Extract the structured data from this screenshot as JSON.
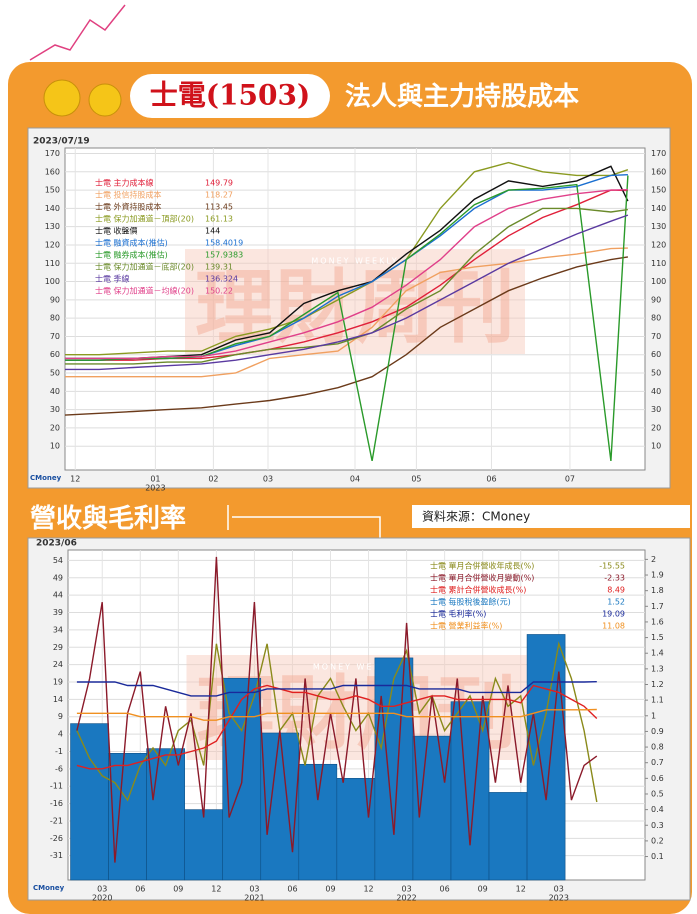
{
  "header": {
    "stock": "士電(1503)",
    "title": "法人與主力持股成本"
  },
  "section_title": "營收與毛利率",
  "source": "資料來源：CMoney",
  "watermark": {
    "name": "理財周刊",
    "en": "MONEY WEEKLY"
  },
  "logo": "CMoney",
  "chart_data": [
    {
      "type": "line",
      "date": "2023/07/19",
      "x": [
        0,
        2,
        4,
        6,
        8,
        10,
        12,
        14,
        16,
        18,
        20,
        22,
        24,
        26,
        28,
        30,
        32,
        33
      ],
      "xlim": [
        0,
        34
      ],
      "xticks": [
        {
          "value": 0.6,
          "label": "12"
        },
        {
          "value": 5.3,
          "label": "01"
        },
        {
          "value": 8.7,
          "label": "02"
        },
        {
          "value": 11.9,
          "label": "03"
        },
        {
          "value": 17,
          "label": "04"
        },
        {
          "value": 20.6,
          "label": "05"
        },
        {
          "value": 25,
          "label": "06"
        },
        {
          "value": 29.6,
          "label": "07"
        }
      ],
      "year_labels": [
        {
          "value": 5.3,
          "label": "2023"
        }
      ],
      "ylim": [
        -3,
        173
      ],
      "yticks": [
        10,
        20,
        30,
        40,
        50,
        60,
        70,
        80,
        90,
        100,
        110,
        120,
        130,
        140,
        150,
        160,
        170
      ],
      "grid": true,
      "series": [
        {
          "name": "士電 主力成本線",
          "color": "#e0203a",
          "legend_value": 149.79,
          "values": [
            57,
            57,
            57,
            58,
            58,
            60,
            63,
            67,
            72,
            78,
            86,
            98,
            112,
            125,
            135,
            142,
            150,
            149.79
          ]
        },
        {
          "name": "士電 投信持股成本",
          "color": "#f0a060",
          "legend_value": 118.27,
          "values": [
            48,
            48,
            48,
            48,
            48,
            50,
            58,
            60,
            62,
            75,
            95,
            105,
            108,
            110,
            113,
            115,
            118,
            118.27
          ]
        },
        {
          "name": "士電 外資持股成本",
          "color": "#6b3a1a",
          "legend_value": 113.45,
          "values": [
            27,
            28,
            29,
            30,
            31,
            33,
            35,
            38,
            42,
            48,
            60,
            75,
            85,
            95,
            102,
            108,
            112,
            113.45
          ]
        },
        {
          "name": "士電 保力加通道－頂部(20)",
          "color": "#8a9a20",
          "legend_value": 161.13,
          "values": [
            60,
            60,
            61,
            62,
            62,
            70,
            74,
            80,
            90,
            100,
            112,
            140,
            160,
            165,
            160,
            158,
            158,
            161.13
          ]
        },
        {
          "name": "士電 收盤價",
          "color": "#111111",
          "legend_value": 144,
          "values": [
            58,
            58,
            58,
            59,
            60,
            68,
            72,
            88,
            95,
            100,
            115,
            128,
            145,
            155,
            152,
            155,
            163,
            144
          ]
        },
        {
          "name": "士電 融資成本(推估)",
          "color": "#1a6fd0",
          "legend_value": 158.4019,
          "values": [
            57,
            57,
            58,
            58,
            59,
            65,
            70,
            80,
            92,
            100,
            112,
            125,
            140,
            150,
            150,
            152,
            158,
            158.4019
          ]
        },
        {
          "name": "士電 融券成本(推估)",
          "color": "#2a9a2a",
          "legend_value": 157.9383,
          "values": [
            57,
            57,
            58,
            58,
            59,
            66,
            70,
            82,
            94,
            2,
            112,
            126,
            142,
            150,
            151,
            153,
            2,
            157.9383
          ]
        },
        {
          "name": "士電 保力加通道－底部(20)",
          "color": "#6a8a2a",
          "legend_value": 139.31,
          "values": [
            55,
            55,
            55,
            56,
            56,
            60,
            63,
            64,
            66,
            72,
            85,
            95,
            115,
            130,
            140,
            140,
            138,
            139.31
          ]
        },
        {
          "name": "士電 季線",
          "color": "#5a3aa0",
          "legend_value": 136.324,
          "values": [
            52,
            52,
            53,
            54,
            55,
            57,
            60,
            63,
            67,
            72,
            80,
            90,
            100,
            110,
            118,
            126,
            133,
            136.324
          ]
        },
        {
          "name": "士電 保力加通道－均線(20)",
          "color": "#e0408a",
          "legend_value": 150.22,
          "values": [
            58,
            58,
            58,
            59,
            59,
            62,
            67,
            72,
            78,
            86,
            98,
            112,
            130,
            140,
            145,
            148,
            150,
            150.22
          ]
        }
      ]
    },
    {
      "type": "combo",
      "date": "2023/06",
      "x": [
        0,
        1,
        2,
        3,
        4,
        5,
        6,
        7,
        8,
        9,
        10,
        11,
        12,
        13,
        14,
        15,
        16,
        17,
        18,
        19,
        20,
        21,
        22,
        23,
        24,
        25,
        26,
        27,
        28,
        29,
        30,
        31,
        32,
        33,
        34,
        35,
        36,
        37,
        38,
        39,
        40,
        41
      ],
      "xlim": [
        -0.7,
        44.8
      ],
      "xticks": [
        {
          "value": 2,
          "label": "03"
        },
        {
          "value": 5,
          "label": "06"
        },
        {
          "value": 8,
          "label": "09"
        },
        {
          "value": 11,
          "label": "12"
        },
        {
          "value": 14,
          "label": "03"
        },
        {
          "value": 17,
          "label": "06"
        },
        {
          "value": 20,
          "label": "09"
        },
        {
          "value": 23,
          "label": "12"
        },
        {
          "value": 26,
          "label": "03"
        },
        {
          "value": 29,
          "label": "06"
        },
        {
          "value": 32,
          "label": "09"
        },
        {
          "value": 35,
          "label": "12"
        },
        {
          "value": 38,
          "label": "03"
        }
      ],
      "year_labels": [
        {
          "value": 2,
          "label": "2020"
        },
        {
          "value": 14,
          "label": "2021"
        },
        {
          "value": 26,
          "label": "2022"
        },
        {
          "value": 38,
          "label": "2023"
        }
      ],
      "ylim": [
        -38,
        57
      ],
      "yticks": [
        -31,
        -26,
        -21,
        -16,
        -11,
        -6,
        -1,
        4,
        9,
        14,
        19,
        24,
        29,
        34,
        39,
        44,
        49,
        54
      ],
      "y2lim": [
        -0.05,
        2.06
      ],
      "y2ticks": [
        0.1,
        0.2,
        0.3,
        0.4,
        0.5,
        0.6,
        0.7,
        0.8,
        0.9,
        1,
        1.1,
        1.2,
        1.3,
        1.4,
        1.5,
        1.6,
        1.7,
        1.8,
        1.9,
        2
      ],
      "grid": true,
      "series": [
        {
          "name": "士電 單月合併營收年成長(%)",
          "color": "#8a8a1a",
          "legend_value": -15.55,
          "values": [
            5,
            -3,
            -8,
            -10,
            -15,
            -5,
            0,
            -5,
            5,
            8,
            -5,
            30,
            10,
            5,
            15,
            30,
            5,
            10,
            -5,
            15,
            20,
            12,
            5,
            10,
            0,
            20,
            28,
            10,
            15,
            5,
            10,
            15,
            5,
            20,
            12,
            15,
            -5,
            10,
            30,
            20,
            5,
            -15.55
          ]
        },
        {
          "name": "士電 單月合併營收月變動(%)",
          "color": "#8b1a2a",
          "legend_value": -2.33,
          "values": [
            5,
            20,
            42,
            -33,
            10,
            22,
            -15,
            12,
            -5,
            10,
            -20,
            55,
            -20,
            -10,
            42,
            -25,
            5,
            -30,
            20,
            -15,
            10,
            -10,
            20,
            -20,
            15,
            -25,
            36,
            -20,
            15,
            -10,
            20,
            -28,
            15,
            -10,
            18,
            -10,
            10,
            -15,
            22,
            -15,
            -5,
            -2.33
          ]
        },
        {
          "name": "士電 累計合併營收成長(%)",
          "color": "#e02020",
          "legend_value": 8.49,
          "values": [
            -5,
            -6,
            -6,
            -5,
            -5,
            -4,
            -3,
            -2,
            -2,
            -1,
            0,
            2,
            8,
            14,
            17,
            18,
            17,
            16,
            16,
            15,
            14,
            14,
            15,
            14,
            12,
            12,
            13,
            14,
            15,
            15,
            14,
            14,
            14,
            14,
            14,
            13,
            18,
            17,
            16,
            14,
            12,
            8.49
          ]
        },
        {
          "name": "士電 每股稅後盈餘(元)",
          "color": "#1a78c0",
          "legend_value": 1.52,
          "type": "bar",
          "axis": "y2",
          "x": [
            0,
            3,
            6,
            9,
            12,
            15,
            18,
            21,
            24,
            27,
            30,
            33,
            36
          ],
          "values": [
            0.95,
            0.76,
            0.79,
            0.4,
            1.24,
            0.89,
            0.69,
            0.6,
            1.37,
            0.87,
            1.09,
            0.51,
            1.52
          ]
        },
        {
          "name": "士電 毛利率(%)",
          "color": "#1a2a9a",
          "legend_value": 19.09,
          "values": [
            19,
            19,
            19,
            19,
            18,
            18,
            18,
            17,
            16,
            15,
            15,
            15,
            16,
            16,
            16,
            17,
            17,
            17,
            17,
            17,
            17,
            18,
            18,
            18,
            18,
            18,
            18,
            17,
            17,
            17,
            17,
            16,
            16,
            16,
            16,
            16,
            19,
            19,
            19,
            19,
            19,
            19.09
          ]
        },
        {
          "name": "士電 營業利益率(%)",
          "color": "#f09020",
          "legend_value": 11.08,
          "values": [
            10,
            10,
            10,
            10,
            10,
            9,
            9,
            9,
            9,
            9,
            8,
            8,
            9,
            9,
            9,
            10,
            10,
            10,
            10,
            10,
            10,
            10,
            10,
            10,
            10,
            10,
            9,
            9,
            9,
            9,
            9,
            9,
            9,
            9,
            9,
            9,
            10,
            11,
            11,
            11,
            11,
            11.08
          ]
        }
      ]
    }
  ]
}
